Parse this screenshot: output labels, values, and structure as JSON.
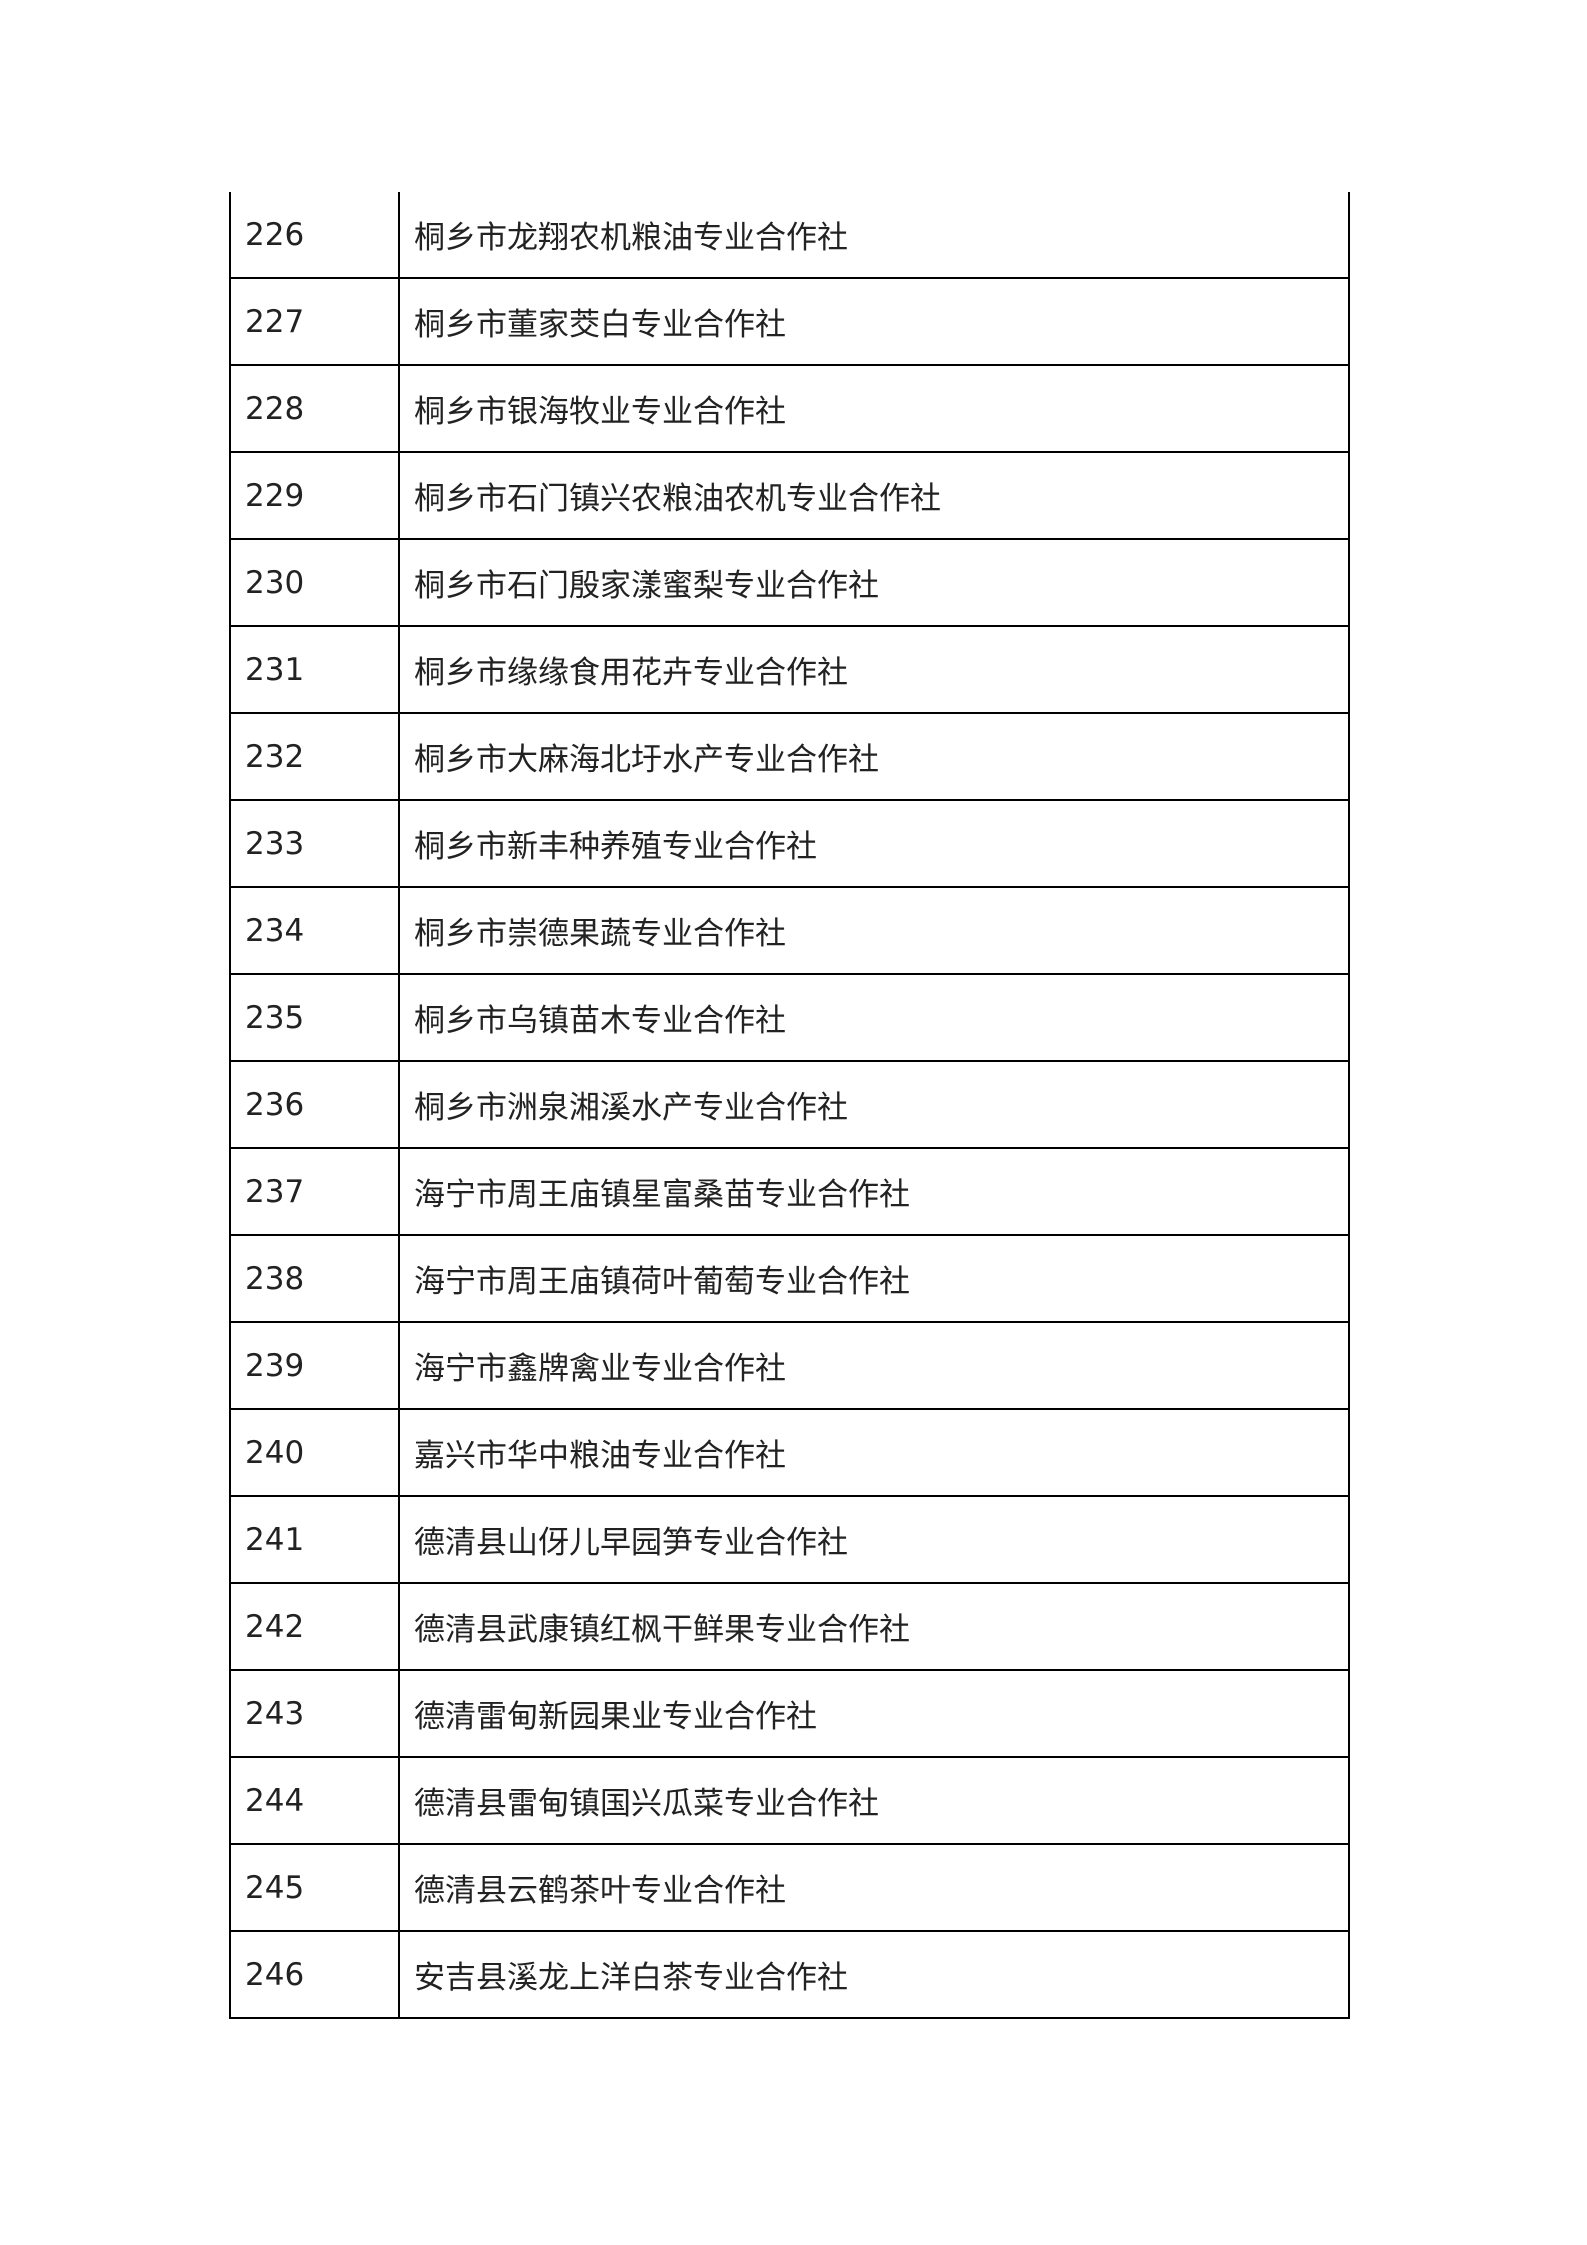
{
  "table": {
    "rows": [
      [
        "226",
        "桐乡市龙翔农机粮油专业合作社"
      ],
      [
        "227",
        "桐乡市董家茭白专业合作社"
      ],
      [
        "228",
        "桐乡市银海牧业专业合作社"
      ],
      [
        "229",
        "桐乡市石门镇兴农粮油农机专业合作社"
      ],
      [
        "230",
        "桐乡市石门殷家漾蜜梨专业合作社"
      ],
      [
        "231",
        "桐乡市缘缘食用花卉专业合作社"
      ],
      [
        "232",
        "桐乡市大麻海北圩水产专业合作社"
      ],
      [
        "233",
        "桐乡市新丰种养殖专业合作社"
      ],
      [
        "234",
        "桐乡市崇德果蔬专业合作社"
      ],
      [
        "235",
        "桐乡市乌镇苗木专业合作社"
      ],
      [
        "236",
        "桐乡市洲泉湘溪水产专业合作社"
      ],
      [
        "237",
        "海宁市周王庙镇星富桑苗专业合作社"
      ],
      [
        "238",
        "海宁市周王庙镇荷叶葡萄专业合作社"
      ],
      [
        "239",
        "海宁市鑫牌禽业专业合作社"
      ],
      [
        "240",
        "嘉兴市华中粮油专业合作社"
      ],
      [
        "241",
        "德清县山伢儿早园笋专业合作社"
      ],
      [
        "242",
        "德清县武康镇红枫干鲜果专业合作社"
      ],
      [
        "243",
        "德清雷甸新园果业专业合作社"
      ],
      [
        "244",
        "德清县雷甸镇国兴瓜菜专业合作社"
      ],
      [
        "245",
        "德清县云鹤茶叶专业合作社"
      ],
      [
        "246",
        "安吉县溪龙上洋白茶专业合作社"
      ]
    ]
  }
}
